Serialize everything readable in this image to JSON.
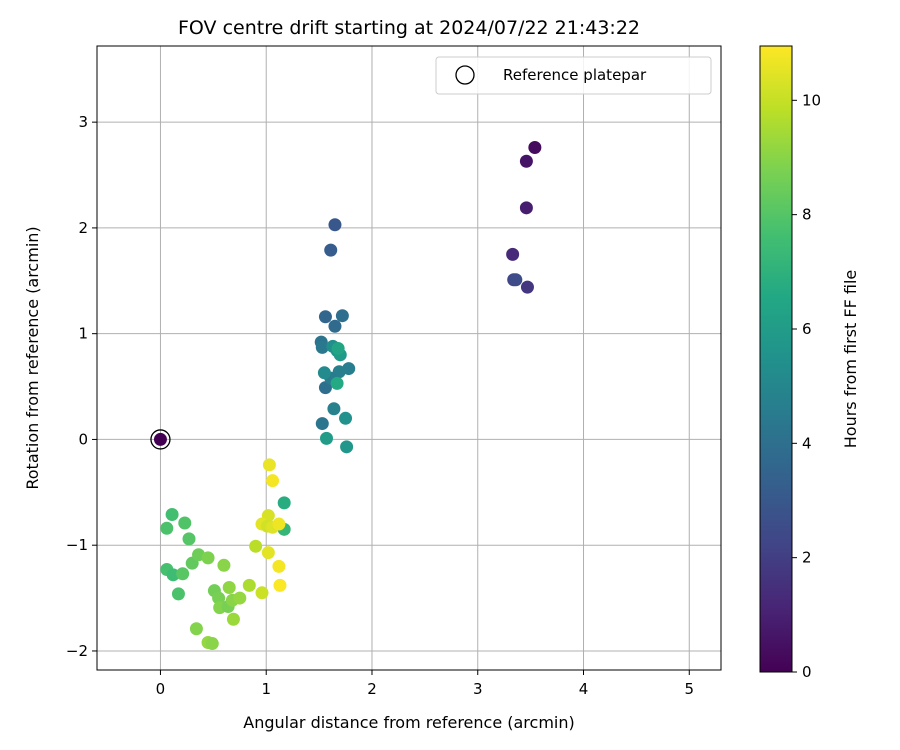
{
  "chart_data": {
    "type": "scatter",
    "title": "FOV centre drift starting at 2024/07/22 21:43:22",
    "xlabel": "Angular distance from reference (arcmin)",
    "ylabel": "Rotation from reference (arcmin)",
    "xlim": [
      -0.6,
      5.3
    ],
    "ylim": [
      -2.18,
      3.72
    ],
    "xticks": [
      0,
      1,
      2,
      3,
      4,
      5
    ],
    "yticks": [
      -2,
      -1,
      0,
      1,
      2,
      3
    ],
    "grid": true,
    "legend": {
      "placement": "top-right",
      "entries": [
        "Reference platepar"
      ]
    },
    "reference_point": {
      "x": 0,
      "y": 0,
      "label": "Reference platepar"
    },
    "colorbar": {
      "label": "Hours from first FF file",
      "colormap": "viridis",
      "range": [
        0,
        10.95
      ],
      "ticks": [
        0,
        2,
        4,
        6,
        8,
        10
      ]
    },
    "points": [
      {
        "x": 0.0,
        "y": 0.0,
        "hours": 0.0
      },
      {
        "x": 3.54,
        "y": 2.76,
        "hours": 0.3
      },
      {
        "x": 3.46,
        "y": 2.63,
        "hours": 0.6
      },
      {
        "x": 3.46,
        "y": 2.19,
        "hours": 0.9
      },
      {
        "x": 3.33,
        "y": 1.75,
        "hours": 1.3
      },
      {
        "x": 3.34,
        "y": 1.51,
        "hours": 2.3
      },
      {
        "x": 3.36,
        "y": 1.51,
        "hours": 2.5
      },
      {
        "x": 3.47,
        "y": 1.44,
        "hours": 1.7
      },
      {
        "x": 1.65,
        "y": 2.03,
        "hours": 3.0
      },
      {
        "x": 1.61,
        "y": 1.79,
        "hours": 3.2
      },
      {
        "x": 1.56,
        "y": 1.16,
        "hours": 3.6
      },
      {
        "x": 1.65,
        "y": 1.07,
        "hours": 3.8
      },
      {
        "x": 1.72,
        "y": 1.17,
        "hours": 4.0
      },
      {
        "x": 1.52,
        "y": 0.92,
        "hours": 4.2
      },
      {
        "x": 1.53,
        "y": 0.87,
        "hours": 4.4
      },
      {
        "x": 1.78,
        "y": 0.67,
        "hours": 4.6
      },
      {
        "x": 1.69,
        "y": 0.64,
        "hours": 4.7
      },
      {
        "x": 1.56,
        "y": 0.49,
        "hours": 4.0
      },
      {
        "x": 1.61,
        "y": 0.58,
        "hours": 4.5
      },
      {
        "x": 1.64,
        "y": 0.29,
        "hours": 4.8
      },
      {
        "x": 1.53,
        "y": 0.15,
        "hours": 4.3
      },
      {
        "x": 1.55,
        "y": 0.63,
        "hours": 5.2
      },
      {
        "x": 1.63,
        "y": 0.88,
        "hours": 5.4
      },
      {
        "x": 1.67,
        "y": 0.84,
        "hours": 5.6
      },
      {
        "x": 1.7,
        "y": 0.8,
        "hours": 5.9
      },
      {
        "x": 1.68,
        "y": 0.86,
        "hours": 6.4
      },
      {
        "x": 1.67,
        "y": 0.53,
        "hours": 6.6
      },
      {
        "x": 1.75,
        "y": 0.2,
        "hours": 5.5
      },
      {
        "x": 1.57,
        "y": 0.01,
        "hours": 6.0
      },
      {
        "x": 1.76,
        "y": -0.07,
        "hours": 5.7
      },
      {
        "x": 1.17,
        "y": -0.6,
        "hours": 6.8
      },
      {
        "x": 1.17,
        "y": -0.85,
        "hours": 7.2
      },
      {
        "x": 0.11,
        "y": -0.71,
        "hours": 7.6
      },
      {
        "x": 0.06,
        "y": -0.84,
        "hours": 7.8
      },
      {
        "x": 0.23,
        "y": -0.79,
        "hours": 7.9
      },
      {
        "x": 0.27,
        "y": -0.94,
        "hours": 8.0
      },
      {
        "x": 0.06,
        "y": -1.23,
        "hours": 7.7
      },
      {
        "x": 0.12,
        "y": -1.28,
        "hours": 7.5
      },
      {
        "x": 0.21,
        "y": -1.27,
        "hours": 8.1
      },
      {
        "x": 0.17,
        "y": -1.46,
        "hours": 7.8
      },
      {
        "x": 0.3,
        "y": -1.17,
        "hours": 8.3
      },
      {
        "x": 0.36,
        "y": -1.09,
        "hours": 8.5
      },
      {
        "x": 0.45,
        "y": -1.12,
        "hours": 8.8
      },
      {
        "x": 0.6,
        "y": -1.19,
        "hours": 9.0
      },
      {
        "x": 0.51,
        "y": -1.43,
        "hours": 8.6
      },
      {
        "x": 0.55,
        "y": -1.5,
        "hours": 8.7
      },
      {
        "x": 0.56,
        "y": -1.59,
        "hours": 8.9
      },
      {
        "x": 0.65,
        "y": -1.4,
        "hours": 9.1
      },
      {
        "x": 0.64,
        "y": -1.58,
        "hours": 8.7
      },
      {
        "x": 0.68,
        "y": -1.52,
        "hours": 9.0
      },
      {
        "x": 0.75,
        "y": -1.5,
        "hours": 9.2
      },
      {
        "x": 0.69,
        "y": -1.7,
        "hours": 9.3
      },
      {
        "x": 0.34,
        "y": -1.79,
        "hours": 8.9
      },
      {
        "x": 0.45,
        "y": -1.92,
        "hours": 9.2
      },
      {
        "x": 0.49,
        "y": -1.93,
        "hours": 9.0
      },
      {
        "x": 0.84,
        "y": -1.38,
        "hours": 9.6
      },
      {
        "x": 0.9,
        "y": -1.01,
        "hours": 9.8
      },
      {
        "x": 0.96,
        "y": -1.45,
        "hours": 10.1
      },
      {
        "x": 1.03,
        "y": -0.24,
        "hours": 10.6
      },
      {
        "x": 1.06,
        "y": -0.39,
        "hours": 10.8
      },
      {
        "x": 1.02,
        "y": -0.72,
        "hours": 10.3
      },
      {
        "x": 0.96,
        "y": -0.8,
        "hours": 10.5
      },
      {
        "x": 1.01,
        "y": -0.82,
        "hours": 10.2
      },
      {
        "x": 1.06,
        "y": -0.83,
        "hours": 10.4
      },
      {
        "x": 1.12,
        "y": -0.8,
        "hours": 10.7
      },
      {
        "x": 1.02,
        "y": -1.07,
        "hours": 10.5
      },
      {
        "x": 1.12,
        "y": -1.2,
        "hours": 10.8
      },
      {
        "x": 1.13,
        "y": -1.38,
        "hours": 10.9
      }
    ]
  }
}
